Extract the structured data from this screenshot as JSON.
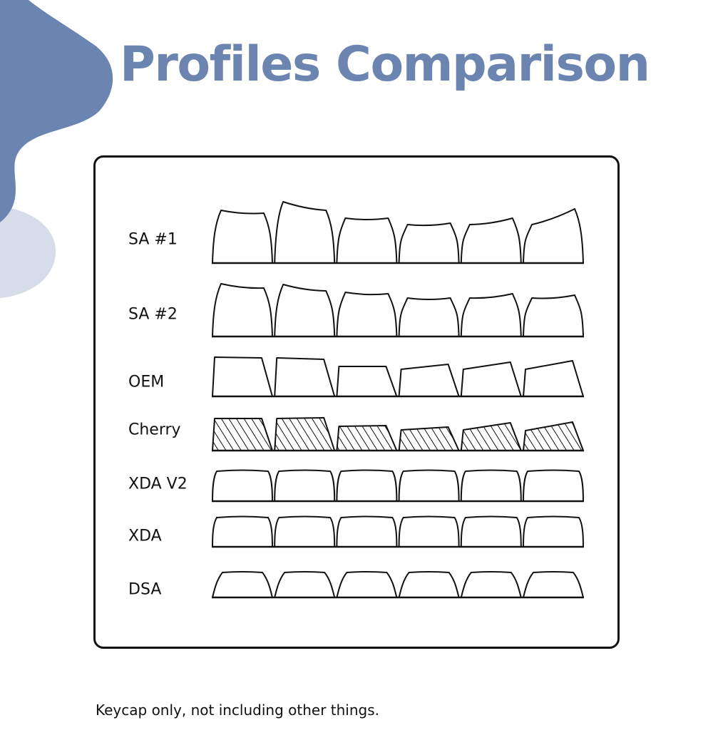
{
  "title": "Profiles Comparison",
  "footnote": "Keycap only, not including other things.",
  "colors": {
    "title": "#6b84b0",
    "blob_dark": "#6b84b0",
    "blob_light": "#d6dde9",
    "outline": "#111111"
  },
  "profiles": [
    {
      "label": "SA #1",
      "shape": "tall-sculpted"
    },
    {
      "label": "SA #2",
      "shape": "tall-sculpted"
    },
    {
      "label": "OEM",
      "shape": "angled"
    },
    {
      "label": "Cherry",
      "shape": "angled-hatched"
    },
    {
      "label": "XDA V2",
      "shape": "flat-uniform"
    },
    {
      "label": "XDA",
      "shape": "flat-uniform"
    },
    {
      "label": "DSA",
      "shape": "low-uniform"
    }
  ],
  "keys_per_row": 6
}
